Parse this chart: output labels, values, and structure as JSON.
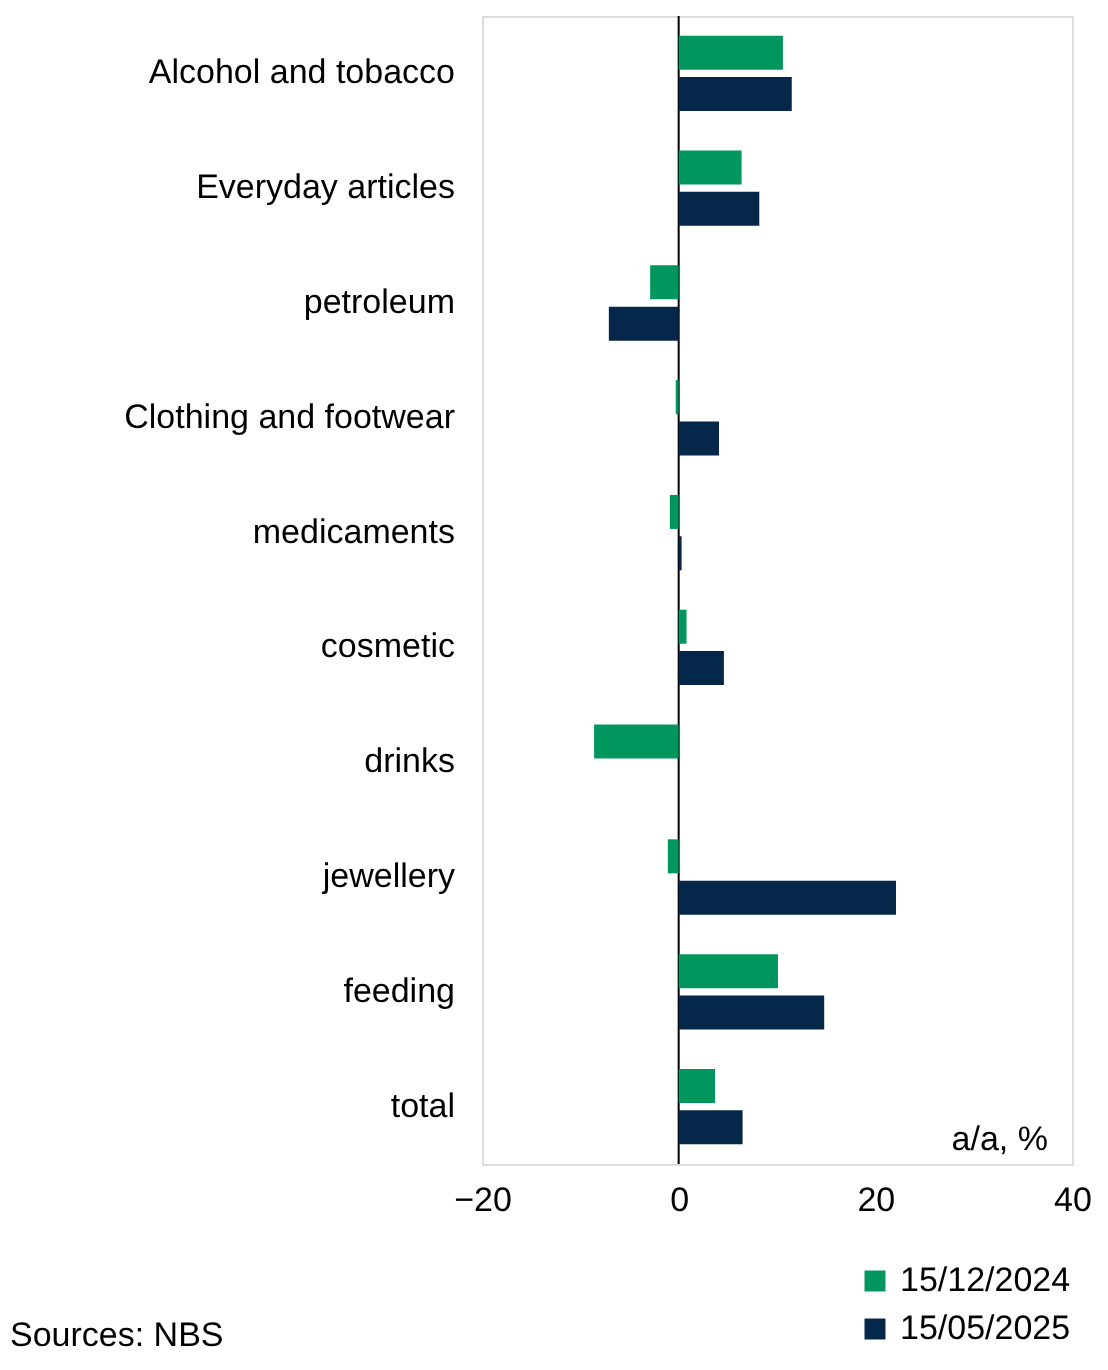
{
  "chart_data": {
    "type": "bar",
    "orientation": "horizontal",
    "categories": [
      "Alcohol and tobacco",
      "Everyday articles",
      "petroleum",
      "Clothing and footwear",
      "medicaments",
      "cosmetic",
      "drinks",
      "jewellery",
      "feeding",
      "total"
    ],
    "series": [
      {
        "name": "15/12/2024",
        "color": "#00965e",
        "values": [
          10.6,
          6.4,
          -2.9,
          -0.3,
          -0.9,
          0.8,
          -8.6,
          -1.1,
          10.1,
          3.7
        ]
      },
      {
        "name": "15/05/2025",
        "color": "#052749",
        "values": [
          11.5,
          8.2,
          -7.1,
          4.1,
          0.3,
          4.6,
          0.0,
          22.1,
          14.8,
          6.5
        ]
      }
    ],
    "xlim": [
      -20,
      40
    ],
    "xticks": [
      -20,
      0,
      20,
      40
    ],
    "grid": false,
    "legend": "bottom right",
    "ref_lines": [
      {
        "axis": "x",
        "value": 0,
        "color": "#000000"
      }
    ],
    "annotations": [
      "a/a, %",
      "Sources: NBS"
    ]
  }
}
